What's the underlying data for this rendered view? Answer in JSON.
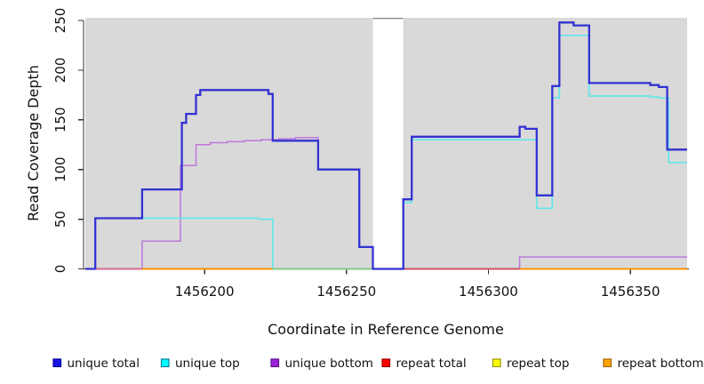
{
  "figure": {
    "background": "#ffffff"
  },
  "axes": {
    "x": {
      "label": "Coordinate in Reference Genome",
      "tick_labels": [
        "1456200",
        "1456250",
        "1456300",
        "1456350"
      ],
      "tick_values": [
        1456200,
        1456250,
        1456300,
        1456350
      ]
    },
    "y": {
      "label": "Read Coverage Depth",
      "tick_labels": [
        "0",
        "50",
        "100",
        "150",
        "200",
        "250"
      ],
      "tick_values": [
        0,
        50,
        100,
        150,
        200,
        250
      ]
    }
  },
  "chart_data": {
    "type": "line",
    "subtype": "step",
    "title": "",
    "xlabel": "Coordinate in Reference Genome",
    "ylabel": "Read Coverage Depth",
    "xlim": [
      1456158,
      1456370
    ],
    "ylim": [
      0,
      252
    ],
    "grid": false,
    "panel_bg": "#d9d9d9",
    "gap": {
      "from": 1456259.3,
      "to": 1456270,
      "fill": "#ffffff",
      "top_border": "#8c8c8c"
    },
    "series": [
      {
        "name": "unique total",
        "color": "#3232d2",
        "width": 2.3,
        "points": [
          [
            1456158,
            0
          ],
          [
            1456161.5,
            51
          ],
          [
            1456178,
            80
          ],
          [
            1456192,
            147
          ],
          [
            1456193.5,
            156
          ],
          [
            1456197,
            175
          ],
          [
            1456198.5,
            180
          ],
          [
            1456222.5,
            176
          ],
          [
            1456224,
            129
          ],
          [
            1456240,
            100
          ],
          [
            1456254.5,
            22
          ],
          [
            1456259.3,
            0
          ],
          [
            1456270,
            70
          ],
          [
            1456273,
            133
          ],
          [
            1456311,
            143
          ],
          [
            1456313,
            141
          ],
          [
            1456317,
            74
          ],
          [
            1456322.5,
            184
          ],
          [
            1456325,
            248
          ],
          [
            1456330,
            245
          ],
          [
            1456335.5,
            187
          ],
          [
            1456357,
            185
          ],
          [
            1456360,
            183
          ],
          [
            1456363,
            120
          ],
          [
            1456370,
            120
          ]
        ]
      },
      {
        "name": "unique top",
        "color": "#66e6ea",
        "width": 1.7,
        "points": [
          [
            1456158,
            0
          ],
          [
            1456161.5,
            51
          ],
          [
            1456219,
            50
          ],
          [
            1456224,
            0
          ],
          [
            1456270,
            67
          ],
          [
            1456273,
            130
          ],
          [
            1456317,
            61
          ],
          [
            1456322.5,
            172
          ],
          [
            1456325,
            235
          ],
          [
            1456335.5,
            174
          ],
          [
            1456357,
            173
          ],
          [
            1456360,
            172
          ],
          [
            1456363.5,
            107
          ],
          [
            1456370,
            107
          ]
        ]
      },
      {
        "name": "unique bottom",
        "color": "#bd77dc",
        "width": 1.5,
        "points": [
          [
            1456158,
            0
          ],
          [
            1456178,
            28
          ],
          [
            1456191.5,
            104
          ],
          [
            1456197,
            125
          ],
          [
            1456202,
            127
          ],
          [
            1456208,
            128
          ],
          [
            1456214,
            129
          ],
          [
            1456220,
            130
          ],
          [
            1456226,
            131
          ],
          [
            1456232,
            132
          ],
          [
            1456240,
            100
          ],
          [
            1456254.5,
            22
          ],
          [
            1456259.3,
            0
          ],
          [
            1456311,
            12
          ],
          [
            1456370,
            12
          ]
        ]
      },
      {
        "name": "repeat total",
        "color": "#e03131",
        "width": 1.5,
        "points": [
          [
            1456158,
            0
          ],
          [
            1456370,
            0
          ]
        ]
      },
      {
        "name": "repeat top",
        "color": "#f5e900",
        "width": 1.5,
        "points": [
          [
            1456158,
            0
          ],
          [
            1456370,
            0
          ]
        ]
      },
      {
        "name": "repeat bottom",
        "color": "#ff9100",
        "width": 1.5,
        "points": [
          [
            1456158,
            0
          ],
          [
            1456370,
            0
          ]
        ]
      }
    ],
    "baseline_overlap_segments": [
      {
        "from": 1456161.5,
        "to": 1456178,
        "color": "#d4688f"
      },
      {
        "from": 1456178,
        "to": 1456224,
        "color": "#ff8c00"
      },
      {
        "from": 1456224,
        "to": 1456259.3,
        "color": "#80c880"
      },
      {
        "from": 1456270,
        "to": 1456311,
        "color": "#cb5064"
      },
      {
        "from": 1456311,
        "to": 1456370,
        "color": "#ff9100"
      }
    ]
  },
  "legend": {
    "items": [
      {
        "label": "unique total",
        "fill": "#1414e6",
        "border": "#000099"
      },
      {
        "label": "unique top",
        "fill": "#00ffff",
        "border": "#0b7f9e"
      },
      {
        "label": "unique bottom",
        "fill": "#9b20d9",
        "border": "#5d1387"
      },
      {
        "label": "repeat total",
        "fill": "#ff0000",
        "border": "#990000"
      },
      {
        "label": "repeat top",
        "fill": "#ffff00",
        "border": "#9a9a00"
      },
      {
        "label": "repeat bottom",
        "fill": "#ffa500",
        "border": "#a06400"
      }
    ]
  }
}
